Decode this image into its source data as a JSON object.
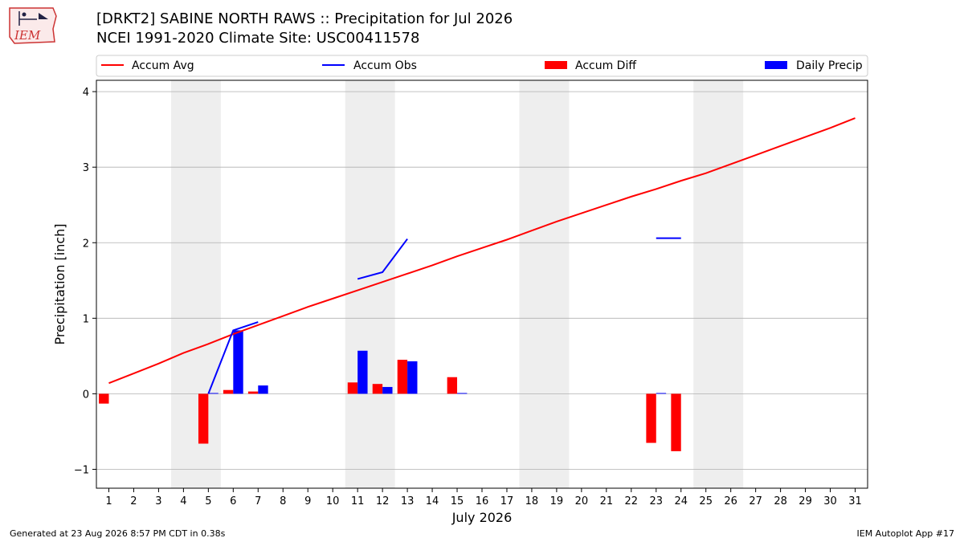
{
  "header": {
    "title_line1": "[DRKT2] SABINE NORTH RAWS :: Precipitation for Jul 2026",
    "title_line2": "NCEI 1991-2020 Climate Site: USC00411578",
    "logo_text": "IEM"
  },
  "footer": {
    "generated": "Generated at 23 Aug 2026 8:57 PM CDT in 0.38s",
    "app": "IEM Autoplot App #17"
  },
  "colors": {
    "avg": "#ff0000",
    "obs": "#0000ff",
    "diff": "#ff0000",
    "daily": "#0000ff",
    "weekend": "#eeeeee",
    "grid": "#b0b0b0"
  },
  "chart_data": {
    "type": "bar",
    "xlabel": "July 2026",
    "ylabel": "Precipitation [inch]",
    "xlim": [
      0.5,
      31.5
    ],
    "ylim": [
      -1.25,
      4.15
    ],
    "yticks": [
      -1,
      0,
      1,
      2,
      3,
      4
    ],
    "ytick_labels": [
      "−1",
      "0",
      "1",
      "2",
      "3",
      "4"
    ],
    "x": [
      1,
      2,
      3,
      4,
      5,
      6,
      7,
      8,
      9,
      10,
      11,
      12,
      13,
      14,
      15,
      16,
      17,
      18,
      19,
      20,
      21,
      22,
      23,
      24,
      25,
      26,
      27,
      28,
      29,
      30,
      31
    ],
    "xtick_labels": [
      "1",
      "2",
      "3",
      "4",
      "5",
      "6",
      "7",
      "8",
      "9",
      "10",
      "11",
      "12",
      "13",
      "14",
      "15",
      "16",
      "17",
      "18",
      "19",
      "20",
      "21",
      "22",
      "23",
      "24",
      "25",
      "26",
      "27",
      "28",
      "29",
      "30",
      "31"
    ],
    "weekend_days": [
      4,
      5,
      11,
      12,
      18,
      19,
      25,
      26
    ],
    "grid": true,
    "legend_position": "top",
    "series": [
      {
        "name": "Accum Avg",
        "kind": "line",
        "values": [
          0.14,
          0.27,
          0.4,
          0.54,
          0.66,
          0.79,
          0.91,
          1.03,
          1.15,
          1.26,
          1.37,
          1.48,
          1.59,
          1.7,
          1.82,
          1.93,
          2.04,
          2.16,
          2.28,
          2.39,
          2.5,
          2.61,
          2.71,
          2.82,
          2.92,
          3.04,
          3.16,
          3.28,
          3.4,
          3.52,
          3.65
        ]
      },
      {
        "name": "Accum Obs",
        "kind": "line",
        "values": [
          null,
          null,
          null,
          null,
          0.0,
          0.84,
          0.95,
          null,
          null,
          null,
          1.52,
          1.61,
          2.05,
          null,
          null,
          null,
          null,
          null,
          null,
          null,
          null,
          null,
          2.06,
          2.06,
          null,
          null,
          null,
          null,
          null,
          null,
          null
        ]
      },
      {
        "name": "Accum Diff",
        "kind": "bar",
        "values": [
          -0.13,
          null,
          null,
          null,
          -0.66,
          0.05,
          0.03,
          null,
          null,
          null,
          0.15,
          0.13,
          0.45,
          null,
          0.22,
          null,
          null,
          null,
          null,
          null,
          null,
          null,
          -0.65,
          -0.76,
          null,
          null,
          null,
          null,
          null,
          null,
          null
        ]
      },
      {
        "name": "Daily Precip",
        "kind": "bar",
        "values": [
          null,
          null,
          null,
          null,
          0.01,
          0.84,
          0.11,
          null,
          null,
          null,
          0.57,
          0.09,
          0.43,
          null,
          0.01,
          null,
          null,
          null,
          null,
          null,
          null,
          null,
          0.01,
          null,
          null,
          null,
          null,
          null,
          null,
          null,
          null
        ]
      }
    ]
  }
}
